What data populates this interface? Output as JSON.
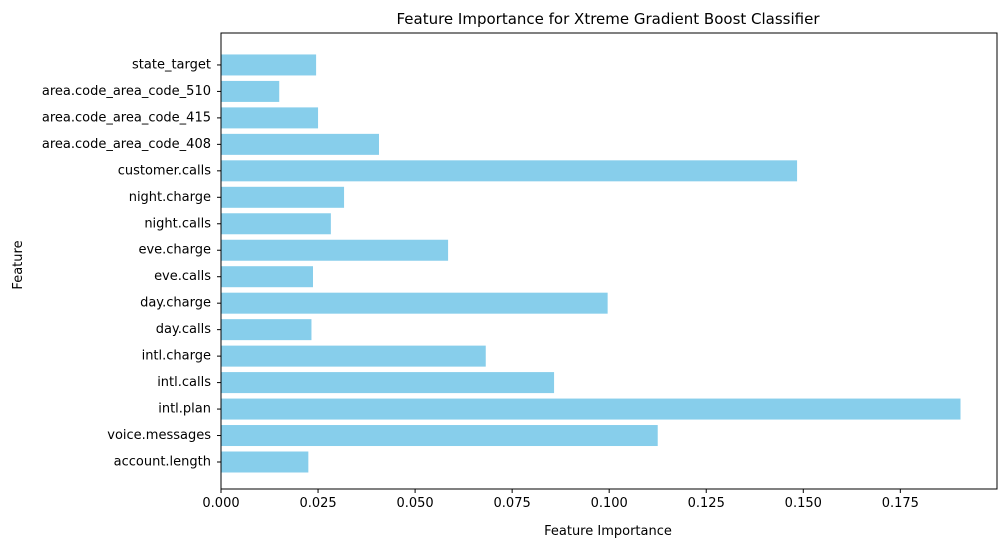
{
  "chart_data": {
    "type": "bar",
    "orientation": "horizontal",
    "title": "Feature Importance for Xtreme Gradient Boost Classifier",
    "xlabel": "Feature Importance",
    "ylabel": "Feature",
    "categories": [
      "account.length",
      "voice.messages",
      "intl.plan",
      "intl.calls",
      "intl.charge",
      "day.calls",
      "day.charge",
      "eve.calls",
      "eve.charge",
      "night.calls",
      "night.charge",
      "customer.calls",
      "area.code_area_code_408",
      "area.code_area_code_415",
      "area.code_area_code_510",
      "state_target"
    ],
    "values": [
      0.0225,
      0.1125,
      0.1905,
      0.0858,
      0.0682,
      0.0233,
      0.0996,
      0.0237,
      0.0585,
      0.0283,
      0.0317,
      0.1484,
      0.0407,
      0.025,
      0.015,
      0.0245
    ],
    "xlim": [
      0,
      0.1999
    ],
    "xticks": [
      0.0,
      0.025,
      0.05,
      0.075,
      0.1,
      0.125,
      0.15,
      0.175
    ],
    "xtick_labels": [
      "0.000",
      "0.025",
      "0.050",
      "0.075",
      "0.100",
      "0.125",
      "0.150",
      "0.175"
    ],
    "bar_color": "#87ceeb",
    "grid": false,
    "legend": false
  }
}
